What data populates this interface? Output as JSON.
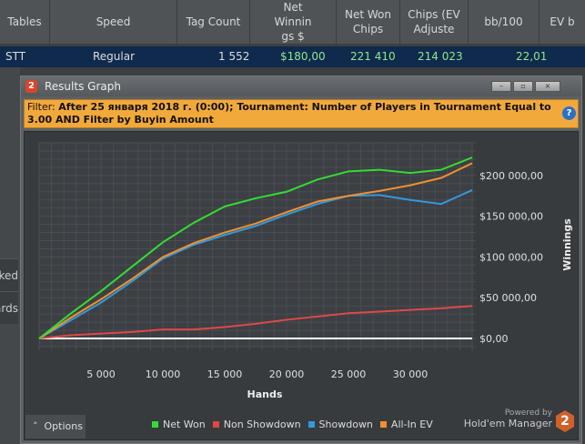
{
  "table": {
    "columns": [
      "Tables",
      "Speed",
      "Tag Count",
      "Net Winnin gs $",
      "Net Won Chips",
      "Chips (EV Adjuste",
      "bb/100",
      "EV b"
    ],
    "row": {
      "tables": "STT",
      "speed": "Regular",
      "tag_count": "1 552",
      "net_winnings": "$180,00",
      "net_won_chips": "221 410",
      "chips_ev": "214 023",
      "bb100": "22,01"
    }
  },
  "side": {
    "items": [
      "rked",
      "ards"
    ]
  },
  "window": {
    "title": "Results Graph",
    "minimize": "–",
    "maximize": "▫",
    "close": "×",
    "filter_label": "Filter:",
    "filter_text": "After 25 января 2018 г. (0:00); Tournament: Number of Players in Tournament Equal to 3.00 AND Filter by Buyin Amount"
  },
  "options_label": "Options",
  "powered_by": "Powered by",
  "brand": "Hold'em Manager",
  "brand_num": "2",
  "chart_data": {
    "type": "line",
    "xlabel": "Hands",
    "ylabel": "Winnings",
    "xlim": [
      0,
      35000
    ],
    "ylim": [
      -10000,
      240000
    ],
    "xticks": [
      5000,
      10000,
      15000,
      20000,
      25000,
      30000
    ],
    "xtick_labels": [
      "5 000",
      "10 000",
      "15 000",
      "20 000",
      "25 000",
      "30 000"
    ],
    "yticks": [
      0,
      50000,
      100000,
      150000,
      200000
    ],
    "ytick_labels": [
      "$0,00",
      "$50 000,00",
      "$100 000,00",
      "$150 000,00",
      "$200 000,00"
    ],
    "grid": true,
    "legend": "bottom",
    "x": [
      0,
      2500,
      5000,
      7500,
      10000,
      12500,
      15000,
      17500,
      20000,
      22500,
      25000,
      27500,
      30000,
      32500,
      35000
    ],
    "series": [
      {
        "name": "Net Won",
        "color": "#33dd33",
        "values": [
          0,
          30000,
          58000,
          88000,
          118000,
          142000,
          162000,
          172000,
          180000,
          195000,
          205000,
          207000,
          203000,
          207000,
          222000
        ]
      },
      {
        "name": "Non Showdown",
        "color": "#e04848",
        "values": [
          0,
          4000,
          6000,
          8000,
          11000,
          11000,
          14000,
          18000,
          23000,
          27000,
          31000,
          33000,
          35000,
          37000,
          40000
        ]
      },
      {
        "name": "Showdown",
        "color": "#3399dd",
        "values": [
          0,
          22000,
          44000,
          70000,
          98000,
          115000,
          127000,
          138000,
          152000,
          165000,
          175000,
          176000,
          170000,
          165000,
          182000
        ]
      },
      {
        "name": "All-In EV",
        "color": "#f09030",
        "values": [
          0,
          25000,
          48000,
          73000,
          100000,
          117000,
          130000,
          141000,
          155000,
          168000,
          175000,
          181000,
          188000,
          197000,
          215000
        ]
      }
    ]
  }
}
